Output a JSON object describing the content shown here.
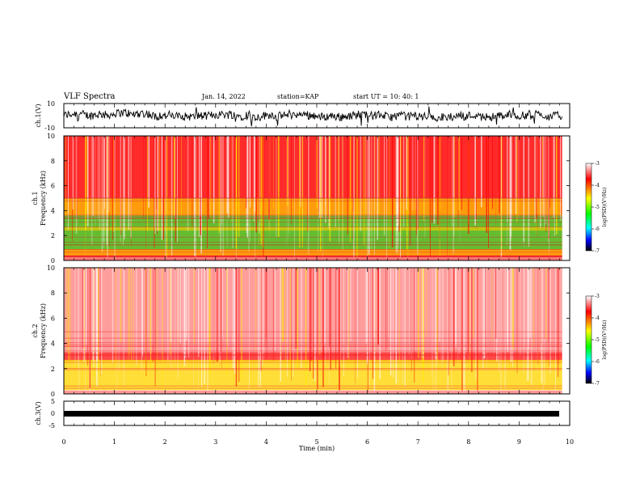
{
  "header": {
    "title": "VLF Spectra",
    "date": "Jan. 14, 2022",
    "station": "station=KAP",
    "start": "start UT =  10: 40: 1"
  },
  "chart_data": [
    {
      "type": "line",
      "name": "ch1-waveform",
      "ylabel": "ch.1(V)",
      "ylim": [
        -10,
        10
      ],
      "yticks": [
        "10",
        "-10"
      ],
      "xlim": [
        0,
        10
      ]
    },
    {
      "type": "heatmap",
      "name": "ch1-spectrogram",
      "ylabel_lines": [
        "ch.1",
        "Frequency (kHz)"
      ],
      "ylim": [
        0,
        10
      ],
      "yticks": [
        "0",
        "2",
        "4",
        "6",
        "8",
        "10"
      ],
      "xlim": [
        0,
        10
      ],
      "colorbar": {
        "label": "log(PSD)(V²/Hz)",
        "range": [
          -7,
          -3
        ],
        "ticks": [
          "-3",
          "-4",
          "-5",
          "-6",
          "-7"
        ]
      }
    },
    {
      "type": "heatmap",
      "name": "ch2-spectrogram",
      "ylabel_lines": [
        "ch.2",
        "Frequency (kHz)"
      ],
      "ylim": [
        0,
        10
      ],
      "yticks": [
        "0",
        "2",
        "4",
        "6",
        "8",
        "10"
      ],
      "xlim": [
        0,
        10
      ],
      "colorbar": {
        "label": "log(PSD)(V²/Hz)",
        "range": [
          -7,
          -3
        ],
        "ticks": [
          "-3",
          "-4",
          "-5",
          "-6",
          "-7"
        ]
      }
    },
    {
      "type": "line",
      "name": "ch3-waveform",
      "ylabel": "ch.3(V)",
      "ylim": [
        -5,
        5
      ],
      "yticks": [
        "5",
        "0",
        "-5"
      ],
      "xlim": [
        0,
        10
      ]
    }
  ],
  "xaxis": {
    "label": "Time (min)",
    "ticks": [
      "0",
      "1",
      "2",
      "3",
      "4",
      "5",
      "6",
      "7",
      "8",
      "9",
      "10"
    ],
    "data_end": 9.85
  },
  "colors": {
    "colormap": [
      "#000000",
      "#0000ff",
      "#00ffff",
      "#00ff00",
      "#ffff00",
      "#ff0000",
      "#ffffff"
    ],
    "ch1_base": "#ff2a2a",
    "ch1_band": "#33ee33",
    "ch2_base": "#ff5050",
    "ch2_band": "#ffdd00"
  }
}
